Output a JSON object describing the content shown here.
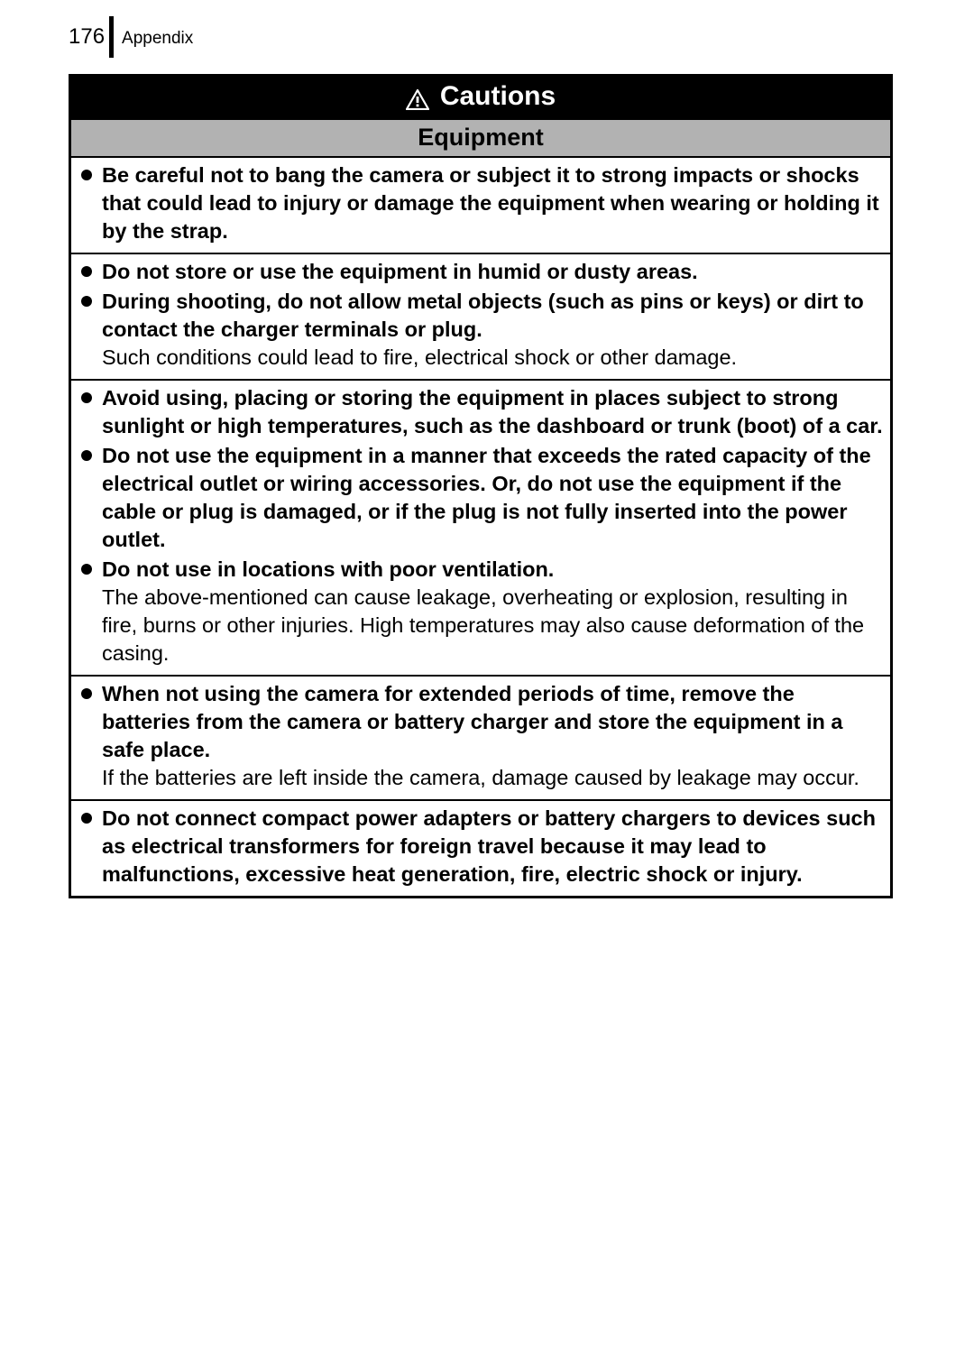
{
  "header": {
    "page_number": "176",
    "section": "Appendix"
  },
  "banner": {
    "title": "Cautions"
  },
  "subheader": "Equipment",
  "colors": {
    "banner_bg": "#000000",
    "banner_fg": "#ffffff",
    "subheader_bg": "#b2b2b2",
    "border": "#000000",
    "text": "#000000"
  },
  "typography": {
    "page_number_size": 24,
    "section_size": 19,
    "banner_size": 30,
    "subheader_size": 27,
    "body_size": 23.5,
    "line_height": 1.32
  },
  "groups": [
    {
      "items": [
        {
          "bold": "Be careful not to bang the camera or subject it to strong impacts or shocks that could lead to injury or damage the equipment when wearing or holding it by the strap.",
          "normal": ""
        }
      ]
    },
    {
      "items": [
        {
          "bold": "Do not store or use the equipment in humid or dusty areas.",
          "normal": ""
        },
        {
          "bold": "During shooting, do not allow metal objects (such as pins or keys) or dirt to contact the charger terminals or plug.",
          "normal": "Such conditions could lead to fire, electrical shock or other damage."
        }
      ]
    },
    {
      "items": [
        {
          "bold": "Avoid using, placing or storing the equipment in places subject to strong sunlight or high temperatures, such as the dashboard or trunk (boot) of a car.",
          "normal": ""
        },
        {
          "bold": "Do not use the equipment in a manner that exceeds the rated capacity of the electrical outlet or wiring accessories. Or, do not use the equipment if the cable or plug is damaged, or if the plug is not fully inserted into the power outlet.",
          "normal": ""
        },
        {
          "bold": "Do not use in locations with poor ventilation.",
          "normal": "The above-mentioned can cause leakage, overheating or explosion, resulting in fire, burns or other injuries. High temperatures may also cause deformation of the casing."
        }
      ]
    },
    {
      "items": [
        {
          "bold": "When not using the camera for extended periods of time, remove the batteries from the camera or battery charger and store the equipment in a safe place.",
          "normal": "If the batteries are left inside the camera, damage caused by leakage may occur."
        }
      ]
    },
    {
      "items": [
        {
          "bold": "Do not connect compact power adapters or battery chargers to devices such as electrical transformers for foreign travel because it may lead to malfunctions, excessive heat generation, fire, electric shock or injury.",
          "normal": ""
        }
      ]
    }
  ]
}
